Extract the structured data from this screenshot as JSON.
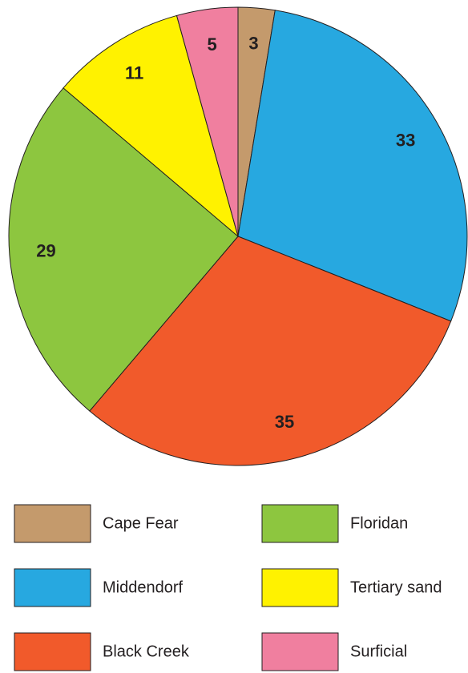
{
  "chart_data": {
    "type": "pie",
    "categories": [
      "Cape Fear",
      "Middendorf",
      "Black Creek",
      "Floridan",
      "Tertiary sand",
      "Surficial"
    ],
    "values": [
      3,
      33,
      35,
      29,
      11,
      5
    ],
    "colors": [
      "#c49a6c",
      "#27a8e0",
      "#f15a2b",
      "#8dc63f",
      "#fff200",
      "#f07f9f"
    ]
  }
}
